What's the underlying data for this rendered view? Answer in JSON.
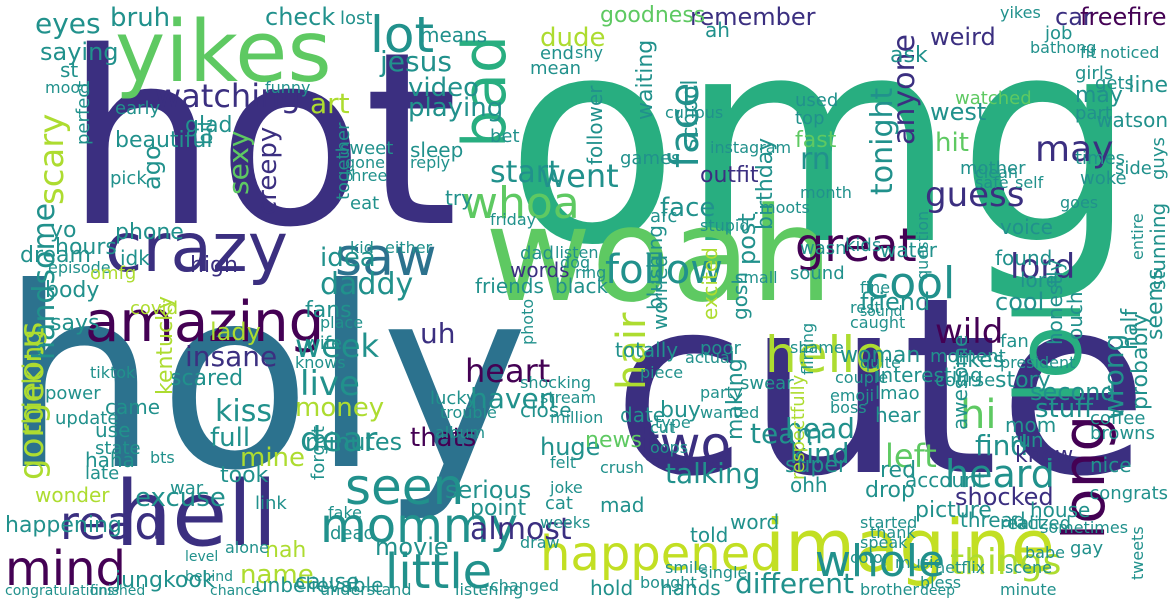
{
  "palette": {
    "dark_purple": "#440154",
    "indigo": "#3b2f80",
    "blue": "#2c728e",
    "teal": "#21918c",
    "green": "#28ae80",
    "light_green": "#5ec962",
    "yellow_green": "#addc30",
    "yellow": "#c2df23"
  },
  "words": [
    "omg",
    "holy",
    "hot",
    "cute",
    "woah",
    "yikes",
    "crazy",
    "hell",
    "imagine",
    "amazing",
    "happened",
    "mind",
    "lol",
    "hello",
    "great",
    "whoa",
    "bad",
    "saw",
    "cool",
    "long",
    "face",
    "mommy",
    "little",
    "seen",
    "lot",
    "whole",
    "things",
    "two",
    "read",
    "hair",
    "heard",
    "gorgeous",
    "handsome",
    "scary",
    "watching",
    "jesus",
    "guess",
    "tonight",
    "may",
    "anyone",
    "follow",
    "wild",
    "lord",
    "heart",
    "dear",
    "kiss",
    "live",
    "week",
    "insane",
    "thinking",
    "almost",
    "talking",
    "different",
    "name",
    "jungkook",
    "daddy",
    "idea",
    "went",
    "start",
    "hit",
    "rn",
    "art",
    "eyes",
    "bruh",
    "check",
    "remember",
    "dude",
    "goodness",
    "video",
    "playing",
    "face",
    "saying",
    "beautiful",
    "sexy",
    "creepy",
    "excuse",
    "money",
    "minutes",
    "full",
    "mine",
    "took",
    "haven",
    "team",
    "hi",
    "left",
    "kind",
    "head",
    "find",
    "shocked",
    "stuff",
    "second",
    "story",
    "wrong",
    "probably",
    "friend",
    "woman",
    "making",
    "post",
    "birthday",
    "school",
    "follower",
    "waiting",
    "outfit",
    "words",
    "friends",
    "black",
    "huge",
    "close",
    "date",
    "buy",
    "thats",
    "movie",
    "serious",
    "point",
    "word",
    "told",
    "hands",
    "hold",
    "cause",
    "lady",
    "scared",
    "body",
    "dream",
    "says",
    "hours",
    "phone",
    "idk",
    "high",
    "uh",
    "games",
    "news",
    "happening",
    "wonder",
    "haha",
    "came",
    "use",
    "state",
    "late",
    "episode",
    "omfg",
    "yo",
    "ago",
    "glad",
    "bit",
    "early",
    "pick",
    "perfect",
    "st",
    "mood",
    "sleep",
    "reply",
    "sweet",
    "gone",
    "three",
    "together",
    "eat",
    "kid",
    "either",
    "try",
    "friday",
    "dad",
    "dog",
    "bet",
    "afc",
    "water",
    "kids",
    "wasn",
    "cool",
    "lord",
    "voice",
    "found",
    "fan",
    "likes",
    "cat",
    "forgot",
    "link",
    "nah",
    "weird",
    "west",
    "car",
    "freefire",
    "job",
    "ask",
    "may",
    "part",
    "times",
    "woke",
    "funny",
    "means",
    "lost",
    "shy",
    "end",
    "ah",
    "mean",
    "watched",
    "fast",
    "top",
    "used",
    "fact",
    "house",
    "picture",
    "drop",
    "red",
    "account",
    "hear",
    "run",
    "knew",
    "awesome",
    "mom",
    "super",
    "ohh",
    "oops",
    "cut",
    "joke",
    "draw",
    "felt",
    "crush",
    "weeks",
    "mad",
    "fake",
    "dead",
    "realized",
    "honestly",
    "ouch",
    "half",
    "seems",
    "watson",
    "line",
    "gets",
    "girls",
    "nice",
    "congrats",
    "sometimes",
    "thread",
    "started",
    "music",
    "swear",
    "party",
    "wanted",
    "shocking",
    "stream",
    "million",
    "type",
    "respectfully",
    "lmao",
    "interesting",
    "course",
    "moment",
    "question",
    "safe",
    "clean",
    "goes",
    "self",
    "side",
    "fit",
    "noticed",
    "guys",
    "stunning",
    "fans",
    "wife",
    "knows",
    "place",
    "sound",
    "month",
    "moots",
    "small",
    "tiktok",
    "covid",
    "power",
    "update",
    "war",
    "bts",
    "kentucky",
    "unbelievable",
    "understand",
    "listening",
    "changed",
    "single",
    "bless",
    "brother",
    "minute",
    "congratulations",
    "finished",
    "alone",
    "bought",
    "smile",
    "deep",
    "scene",
    "gay",
    "netflix",
    "babe",
    "tweets",
    "ring",
    "listen",
    "totally",
    "worried",
    "album",
    "lucky",
    "trouble",
    "photo",
    "poor",
    "actual",
    "flirting",
    "shame",
    "caught",
    "rest",
    "quite",
    "couple",
    "emoji",
    "boss",
    "president",
    "instagram",
    "stupid",
    "curious",
    "mother",
    "bathong",
    "coffee",
    "browns",
    "speak",
    "color",
    "thank",
    "blushing",
    "excited",
    "gosh",
    "piece",
    "chance",
    "behind",
    "fine",
    "level",
    "sound",
    "entire",
    "yikes"
  ]
}
